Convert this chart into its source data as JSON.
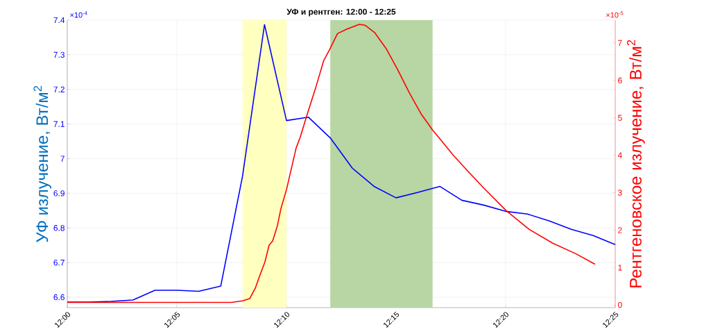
{
  "chart_data": {
    "type": "line",
    "title": "УФ и рентген: 12:00 - 12:25",
    "ylabel": "УФ излучение, Вт/м$^{2}$",
    "y2label": "Рентгеновское излучение, Вт/м$^{2}$",
    "annotations": [
      "×10$^{-4}$",
      "×10$^{-5}$"
    ],
    "xlim": [
      12.0,
      12.4167
    ],
    "xticks": [
      {
        "value": 12.0,
        "label": "12:00"
      },
      {
        "value": 12.0833,
        "label": "12:05"
      },
      {
        "value": 12.1667,
        "label": "12:10"
      },
      {
        "value": 12.25,
        "label": "12:15"
      },
      {
        "value": 12.3333,
        "label": "12:20"
      },
      {
        "value": 12.4167,
        "label": "12:25"
      }
    ],
    "ylim": [
      6.57,
      7.4
    ],
    "yticks": [
      6.6,
      6.7,
      6.8,
      6.9,
      7,
      7.1,
      7.2,
      7.3,
      7.4
    ],
    "y2lim": [
      -0.07,
      7.61
    ],
    "y2ticks": [
      0,
      1,
      2,
      3,
      4,
      5,
      6,
      7
    ],
    "grid": true,
    "bands": [
      {
        "axis": "x",
        "from": 12.1333,
        "to": 12.1667,
        "color": "#ffffc0"
      },
      {
        "axis": "x",
        "from": 12.2,
        "to": 12.2778,
        "color": "#b7d6a3"
      }
    ],
    "series": [
      {
        "color": "#0000ff",
        "x": [
          12.0,
          12.0167,
          12.0333,
          12.05,
          12.0667,
          12.0833,
          12.1,
          12.1167,
          12.1333,
          12.15,
          12.1667,
          12.1833,
          12.2,
          12.2167,
          12.2333,
          12.25,
          12.2667,
          12.2833,
          12.3,
          12.3167,
          12.3333,
          12.35,
          12.3667,
          12.3833,
          12.4,
          12.4167
        ],
        "values": [
          6.586,
          6.586,
          6.588,
          6.592,
          6.62,
          6.62,
          6.617,
          6.632,
          6.95,
          7.387,
          7.11,
          7.12,
          7.06,
          6.973,
          6.92,
          6.887,
          6.903,
          6.92,
          6.88,
          6.866,
          6.848,
          6.84,
          6.82,
          6.796,
          6.778,
          6.752
        ]
      },
      {
        "color": "#ff0000",
        "axis": "y2",
        "x": [
          12.0,
          12.125,
          12.1333,
          12.1387,
          12.143,
          12.1457,
          12.1503,
          12.1535,
          12.1562,
          12.1598,
          12.1625,
          12.1667,
          12.174,
          12.1772,
          12.1827,
          12.1888,
          12.195,
          12.1993,
          12.2055,
          12.2125,
          12.2222,
          12.2267,
          12.2337,
          12.2425,
          12.2512,
          12.26,
          12.2688,
          12.2777,
          12.2847,
          12.2933,
          12.304,
          12.3163,
          12.3338,
          12.3513,
          12.3692,
          12.3867,
          12.4013
        ],
        "values": [
          0.07,
          0.07,
          0.11,
          0.17,
          0.45,
          0.72,
          1.15,
          1.6,
          1.71,
          2.12,
          2.58,
          3.08,
          4.19,
          4.49,
          5.12,
          5.79,
          6.53,
          6.81,
          7.25,
          7.37,
          7.5,
          7.47,
          7.28,
          6.85,
          6.29,
          5.68,
          5.12,
          4.68,
          4.38,
          4.01,
          3.6,
          3.14,
          2.52,
          2.02,
          1.65,
          1.37,
          1.09
        ]
      }
    ]
  }
}
